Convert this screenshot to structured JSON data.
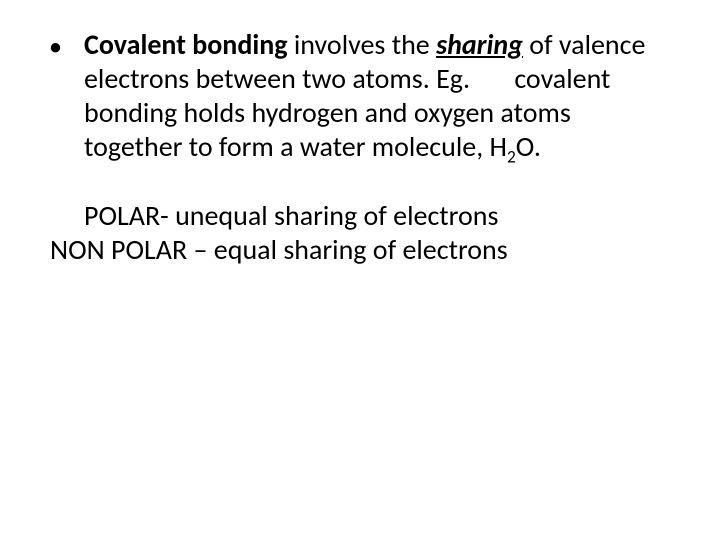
{
  "slide": {
    "background_color": "#ffffff",
    "text_color": "#000000",
    "font_family": "Calibri",
    "body_font_size_pt": 28,
    "line_height": 1.22,
    "bullet": {
      "mark": "•",
      "covalent_label": "Covalent bonding",
      "involves_text": " involves the ",
      "sharing_label": "sharing",
      "body_text_1": "of valence electrons between two atoms. Eg.       covalent bonding holds hydrogen and oxygen atoms together to form a water molecule, H",
      "subscript": "2",
      "body_text_2": "O."
    },
    "polar_line": "POLAR- unequal sharing of electrons",
    "nonpolar_line": "NON POLAR – equal sharing of electrons"
  }
}
